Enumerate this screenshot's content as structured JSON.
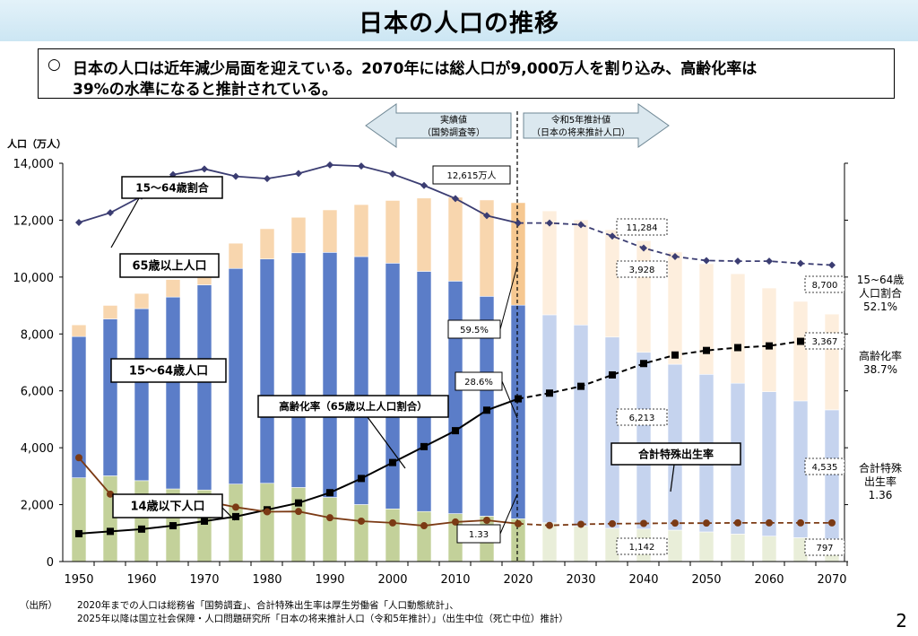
{
  "page": {
    "title": "日本の人口の推移",
    "summary_bullet": "○",
    "summary_line1": "日本の人口は近年減少局面を迎えている。2070年には総人口が9,000万人を割り込み、高齢化率は",
    "summary_line2": "39%の水準になると推計されている。",
    "note_source": "（出所）",
    "note_line1": "2020年までの人口は総務省「国勢調査」、合計特殊出生率は厚生労働省「人口動態統計」、",
    "note_line2": "2025年以降は国立社会保障・人口問題研究所「日本の将来推計人口（令和5年推計）」（出生中位（死亡中位）推計）",
    "page_number": "2",
    "arrow_left_line1": "実績値",
    "arrow_left_line2": "（国勢調査等）",
    "arrow_right_line1": "令和5年推計値",
    "arrow_right_line2": "（日本の将来推計人口）",
    "colors": {
      "under14": "#c3d19a",
      "working": "#5b7dc8",
      "over65": "#f8d6ae",
      "under14_proj": "#e9eed9",
      "working_proj": "#c5d3ee",
      "over65_proj": "#fdeedd",
      "latest": "#f6c891",
      "ratio_line": "#3b3d72",
      "aging_line": "#000000",
      "tfr_line": "#7b3a14",
      "title_band": "#d4ecf7"
    }
  },
  "chart_data": {
    "type": "bar",
    "stacked": true,
    "ylabel": "人口（万人）",
    "ylim": [
      0,
      14000
    ],
    "yticks": [
      0,
      2000,
      4000,
      6000,
      8000,
      10000,
      12000,
      14000
    ],
    "ytick_labels": [
      "0",
      "2,000",
      "4,000",
      "6,000",
      "8,000",
      "10,000",
      "12,000",
      "14,000"
    ],
    "xtick_labels": [
      "1950",
      "1960",
      "1970",
      "1980",
      "1990",
      "2000",
      "2010",
      "2020",
      "2030",
      "2040",
      "2050",
      "2060",
      "2070"
    ],
    "x": [
      1950,
      1955,
      1960,
      1965,
      1970,
      1975,
      1980,
      1985,
      1990,
      1995,
      2000,
      2005,
      2010,
      2015,
      2020,
      2025,
      2030,
      2035,
      2040,
      2045,
      2050,
      2055,
      2060,
      2065,
      2070
    ],
    "series": [
      {
        "name": "14歳以下人口",
        "values": [
          2943,
          3012,
          2843,
          2553,
          2515,
          2722,
          2751,
          2603,
          2254,
          2003,
          1851,
          1759,
          1684,
          1595,
          1503,
          1363,
          1240,
          1169,
          1142,
          1103,
          1041,
          966,
          893,
          838,
          797
        ]
      },
      {
        "name": "15～64歳人口",
        "values": [
          4966,
          5517,
          6047,
          6744,
          7212,
          7581,
          7884,
          8251,
          8614,
          8717,
          8638,
          8442,
          8174,
          7728,
          7509,
          7310,
          7076,
          6722,
          6213,
          5832,
          5540,
          5302,
          5078,
          4809,
          4535
        ]
      },
      {
        "name": "65歳以上人口",
        "values": [
          411,
          475,
          535,
          618,
          733,
          887,
          1065,
          1247,
          1493,
          1828,
          2204,
          2576,
          2948,
          3387,
          3603,
          3653,
          3696,
          3773,
          3928,
          3945,
          3888,
          3849,
          3644,
          3498,
          3367
        ]
      }
    ],
    "line_series": [
      {
        "name": "15～64歳割合",
        "values": [
          59.6,
          61.3,
          64.2,
          68.0,
          69.0,
          67.7,
          67.3,
          68.2,
          69.7,
          69.5,
          68.1,
          66.1,
          63.8,
          60.8,
          59.5,
          59.5,
          59.2,
          57.2,
          55.1,
          53.6,
          52.9,
          52.8,
          52.8,
          52.4,
          52.1
        ]
      },
      {
        "name": "高齢化率（65歳以上人口割合）",
        "values": [
          4.9,
          5.3,
          5.7,
          6.3,
          7.1,
          7.9,
          9.1,
          10.3,
          12.1,
          14.6,
          17.4,
          20.2,
          23.0,
          26.6,
          28.6,
          29.6,
          30.8,
          32.8,
          34.8,
          36.3,
          37.1,
          37.6,
          37.9,
          38.7,
          38.7
        ]
      },
      {
        "name": "合計特殊出生率",
        "values": [
          3.65,
          2.37,
          2.0,
          2.14,
          2.13,
          1.91,
          1.75,
          1.76,
          1.54,
          1.42,
          1.36,
          1.26,
          1.39,
          1.45,
          1.33,
          1.27,
          1.31,
          1.33,
          1.34,
          1.35,
          1.35,
          1.36,
          1.36,
          1.36,
          1.36
        ]
      }
    ],
    "labels": {
      "total_2020": "12,615万人",
      "ratio_2020": "59.5%",
      "aging_2020": "28.6%",
      "tfr_2020": "1.33",
      "total_2040": "11,284",
      "over65_2040": "3,928",
      "working_2040": "6,213",
      "under14_2040": "1,142",
      "total_2070": "8,700",
      "over65_2070": "3,367",
      "working_2070": "4,535",
      "under14_2070": "797",
      "right_ratio_l1": "15~64歳",
      "right_ratio_l2": "人口割合",
      "right_ratio_l3": "52.1%",
      "right_aging_l1": "高齢化率",
      "right_aging_l2": "38.7%",
      "right_tfr_l1": "合計特殊",
      "right_tfr_l2": "出生率",
      "right_tfr_l3": "1.36",
      "callout_ratio": "15～64歳割合",
      "callout_over65": "65歳以上人口",
      "callout_working": "15～64歳人口",
      "callout_aging": "高齢化率（65歳以上人口割合）",
      "callout_tfr": "合計特殊出生率",
      "callout_under14": "14歳以下人口"
    }
  }
}
